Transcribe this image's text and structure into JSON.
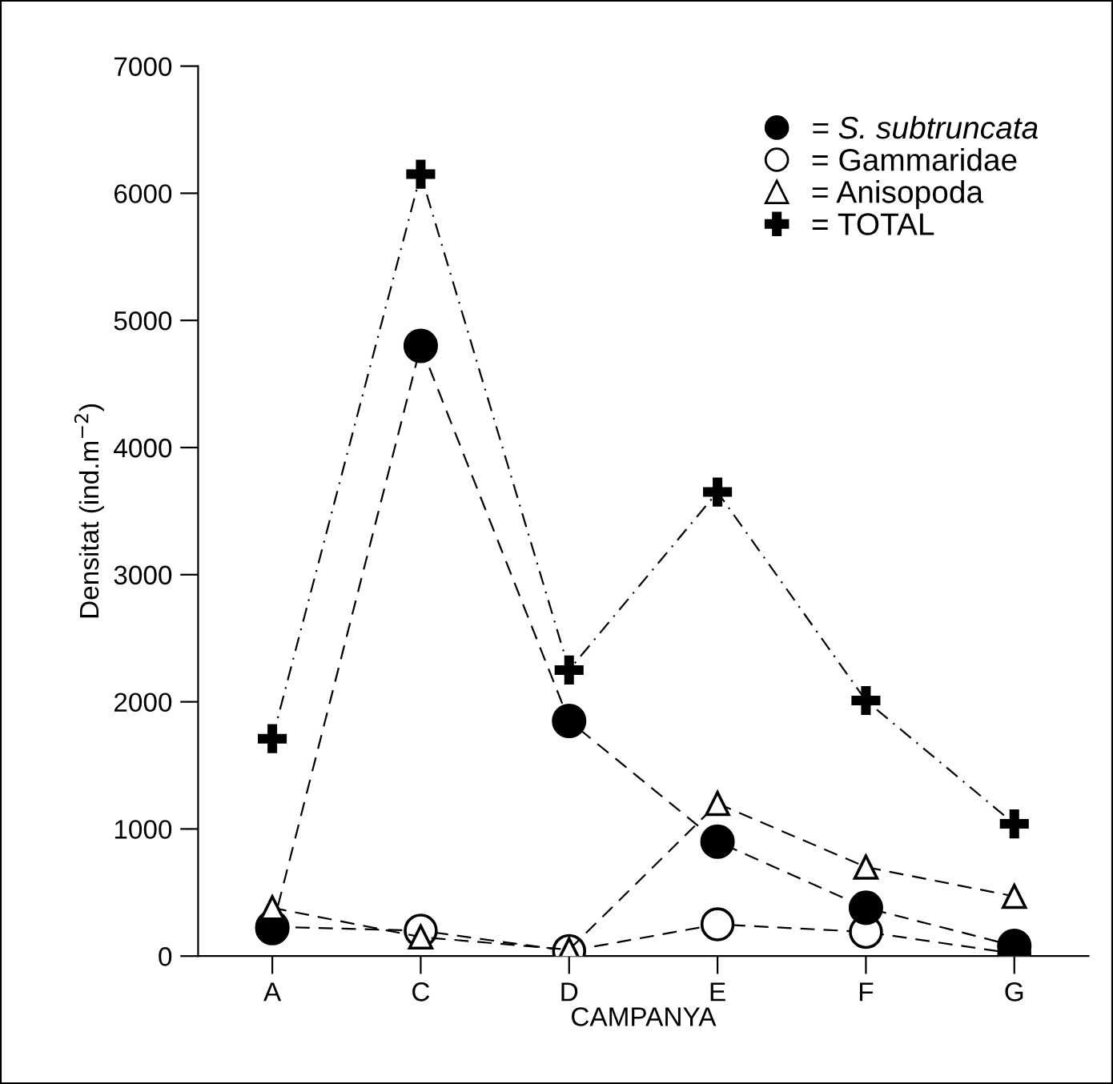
{
  "chart_data": {
    "type": "line",
    "xlabel": "CAMPANYA",
    "ylabel": "Densitat (ind.m$^{−2}$)",
    "categories": [
      "A",
      "C",
      "D",
      "E",
      "F",
      "G"
    ],
    "series": [
      {
        "name": "= S. subtruncata",
        "color": "#000000",
        "marker": "circle",
        "line_style": "dashed",
        "values": [
          220,
          4800,
          1850,
          900,
          380,
          80
        ]
      },
      {
        "name": "= Gammaridae",
        "color": "#000000",
        "marker": "circle",
        "line_style": "dashed",
        "values": [
          230,
          200,
          40,
          250,
          190,
          20
        ]
      },
      {
        "name": "= Anisopoda",
        "color": "#000000",
        "marker": "triangle",
        "line_style": "dashed",
        "values": [
          380,
          150,
          50,
          1200,
          700,
          470
        ]
      },
      {
        "name": "= TOTAL",
        "color": "#000000",
        "marker": "cross",
        "line_style": "dashdot",
        "values": [
          1710,
          6150,
          2250,
          3650,
          2010,
          1040
        ]
      }
    ],
    "ylim": [
      0,
      7000
    ],
    "yticks": [
      0,
      1000,
      2000,
      3000,
      4000,
      5000,
      6000,
      7000
    ],
    "grid": false,
    "legend": "top right"
  }
}
